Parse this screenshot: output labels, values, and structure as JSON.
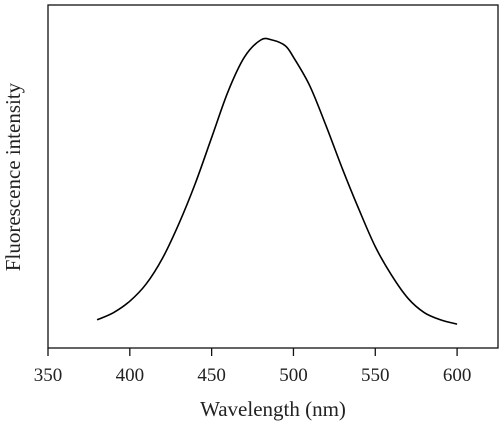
{
  "chart_data": {
    "type": "line",
    "xlabel": "Wavelength (nm)",
    "ylabel": "Fluorescence intensity",
    "xlim": [
      350,
      625
    ],
    "ylim": [
      0,
      1.08
    ],
    "xticks": [
      350,
      400,
      450,
      500,
      550,
      600
    ],
    "yticks_shown": false,
    "grid": false,
    "legend": "none",
    "series": [
      {
        "color": "#000000",
        "x": [
          380,
          390,
          400,
          410,
          420,
          430,
          440,
          450,
          460,
          470,
          480,
          487,
          495,
          500,
          510,
          520,
          530,
          540,
          550,
          560,
          570,
          580,
          590,
          600
        ],
        "y": [
          0.025,
          0.05,
          0.09,
          0.15,
          0.24,
          0.36,
          0.5,
          0.66,
          0.82,
          0.94,
          1.0,
          1.0,
          0.98,
          0.94,
          0.84,
          0.7,
          0.55,
          0.41,
          0.28,
          0.18,
          0.1,
          0.05,
          0.025,
          0.01
        ]
      }
    ]
  }
}
